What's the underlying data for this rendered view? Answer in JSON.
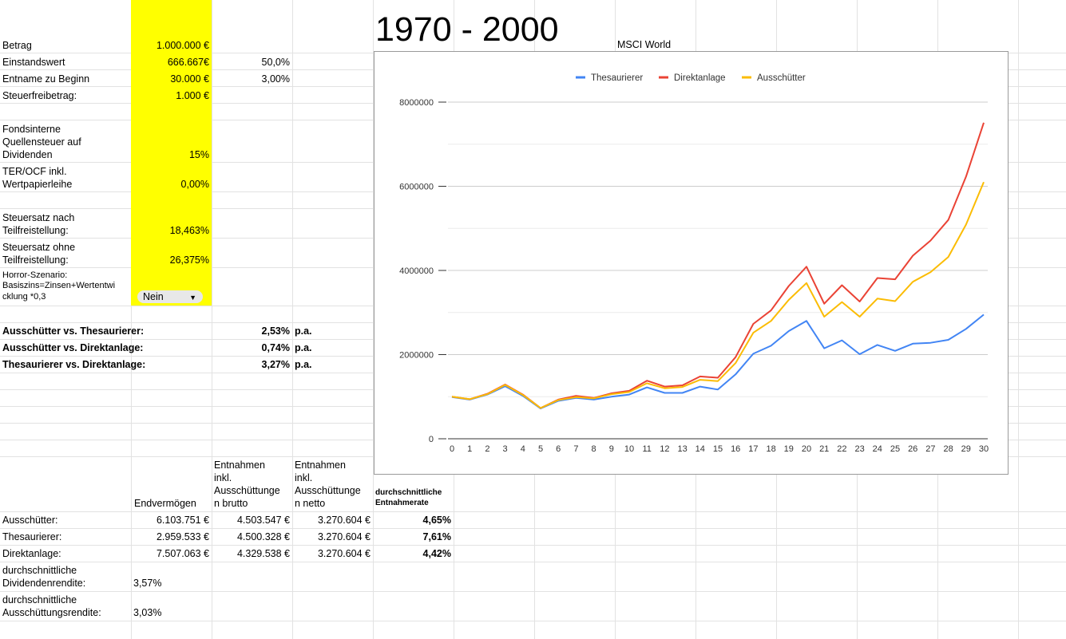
{
  "title": "1970 - 2000",
  "chart_label": "MSCI World",
  "params": [
    {
      "label": "Betrag",
      "value": "1.000.000 €",
      "extra": ""
    },
    {
      "label": "Einstandswert",
      "value": "666.667€",
      "extra": "50,0%"
    },
    {
      "label": "Entname zu Beginn",
      "value": "30.000 €",
      "extra": "3,00%"
    },
    {
      "label": "Steuerfreibetrag:",
      "value": "1.000 €",
      "extra": ""
    }
  ],
  "quellensteuer": {
    "label_lines": [
      "Fondsinterne",
      "Quellensteuer auf",
      "Dividenden"
    ],
    "value": "15%"
  },
  "ter": {
    "label_lines": [
      "TER/OCF inkl.",
      "Wertpapierleihe"
    ],
    "value": "0,00%"
  },
  "steuer_nach": {
    "label_lines": [
      "Steuersatz nach",
      "Teilfreistellung:"
    ],
    "value": "18,463%"
  },
  "steuer_ohne": {
    "label_lines": [
      "Steuersatz ohne",
      "Teilfreistellung:"
    ],
    "value": "26,375%"
  },
  "horror": {
    "label_lines": [
      "Horror-Szenario:",
      "Basiszins=Zinsen+Wertentwi",
      "cklung *0,3"
    ],
    "dropdown_value": "Nein",
    "dropdown_arrow": "▼"
  },
  "comparisons": [
    {
      "label": "Ausschütter vs. Thesaurierer:",
      "value": "2,53%",
      "unit": "p.a."
    },
    {
      "label": "Ausschütter vs. Direktanlage:",
      "value": "0,74%",
      "unit": "p.a."
    },
    {
      "label": "Thesaurierer vs. Direktanlage:",
      "value": "3,27%",
      "unit": "p.a."
    }
  ],
  "results": {
    "headers": {
      "endvermoegen": "Endvermögen",
      "brutto_lines": [
        "Entnahmen",
        "inkl.",
        "Ausschüttunge",
        "n brutto"
      ],
      "netto_lines": [
        "Entnahmen",
        "inkl.",
        "Ausschüttunge",
        "n netto"
      ],
      "rate_lines": [
        "durchschnittliche",
        "Entnahmerate"
      ]
    },
    "rows": [
      {
        "label": "Ausschütter:",
        "end": "6.103.751 €",
        "brutto": "4.503.547 €",
        "netto": "3.270.604 €",
        "rate": "4,65%"
      },
      {
        "label": "Thesaurierer:",
        "end": "2.959.533 €",
        "brutto": "4.500.328 €",
        "netto": "3.270.604 €",
        "rate": "7,61%"
      },
      {
        "label": "Direktanlage:",
        "end": "7.507.063 €",
        "brutto": "4.329.538 €",
        "netto": "3.270.604 €",
        "rate": "4,42%"
      }
    ]
  },
  "dividendenrendite": {
    "label_lines": [
      "durchschnittliche",
      "Dividendenrendite:"
    ],
    "value": "3,57%"
  },
  "ausschuettungsrendite": {
    "label_lines": [
      "durchschnittliche",
      "Ausschüttungsrendite:"
    ],
    "value": "3,03%"
  },
  "chart_data": {
    "type": "line",
    "title": "",
    "xlabel": "",
    "ylabel": "",
    "x": [
      0,
      1,
      2,
      3,
      4,
      5,
      6,
      7,
      8,
      9,
      10,
      11,
      12,
      13,
      14,
      15,
      16,
      17,
      18,
      19,
      20,
      21,
      22,
      23,
      24,
      25,
      26,
      27,
      28,
      29,
      30
    ],
    "ylim": [
      0,
      8000000
    ],
    "yticks": [
      0,
      2000000,
      4000000,
      6000000,
      8000000
    ],
    "ytick_labels": [
      "0",
      "2000000",
      "4000000",
      "6000000",
      "8000000"
    ],
    "legend_position": "top-center",
    "grid": true,
    "series": [
      {
        "name": "Thesaurierer",
        "color": "#4285f4",
        "values": [
          990000,
          930000,
          1050000,
          1250000,
          1020000,
          720000,
          900000,
          970000,
          930000,
          1000000,
          1050000,
          1220000,
          1090000,
          1090000,
          1240000,
          1170000,
          1530000,
          2020000,
          2210000,
          2560000,
          2800000,
          2150000,
          2340000,
          2010000,
          2230000,
          2090000,
          2260000,
          2280000,
          2350000,
          2610000,
          2950000
        ]
      },
      {
        "name": "Direktanlage",
        "color": "#ea4335",
        "values": [
          1000000,
          940000,
          1070000,
          1290000,
          1050000,
          730000,
          930000,
          1020000,
          970000,
          1080000,
          1140000,
          1380000,
          1240000,
          1270000,
          1480000,
          1450000,
          1940000,
          2730000,
          3050000,
          3630000,
          4090000,
          3210000,
          3650000,
          3260000,
          3820000,
          3790000,
          4350000,
          4710000,
          5200000,
          6230000,
          7510000
        ]
      },
      {
        "name": "Ausschütter",
        "color": "#fbbc04",
        "values": [
          1000000,
          940000,
          1060000,
          1280000,
          1040000,
          730000,
          920000,
          990000,
          960000,
          1060000,
          1110000,
          1320000,
          1200000,
          1230000,
          1400000,
          1370000,
          1800000,
          2520000,
          2800000,
          3300000,
          3700000,
          2900000,
          3250000,
          2900000,
          3330000,
          3270000,
          3730000,
          3960000,
          4320000,
          5090000,
          6100000
        ]
      }
    ]
  }
}
